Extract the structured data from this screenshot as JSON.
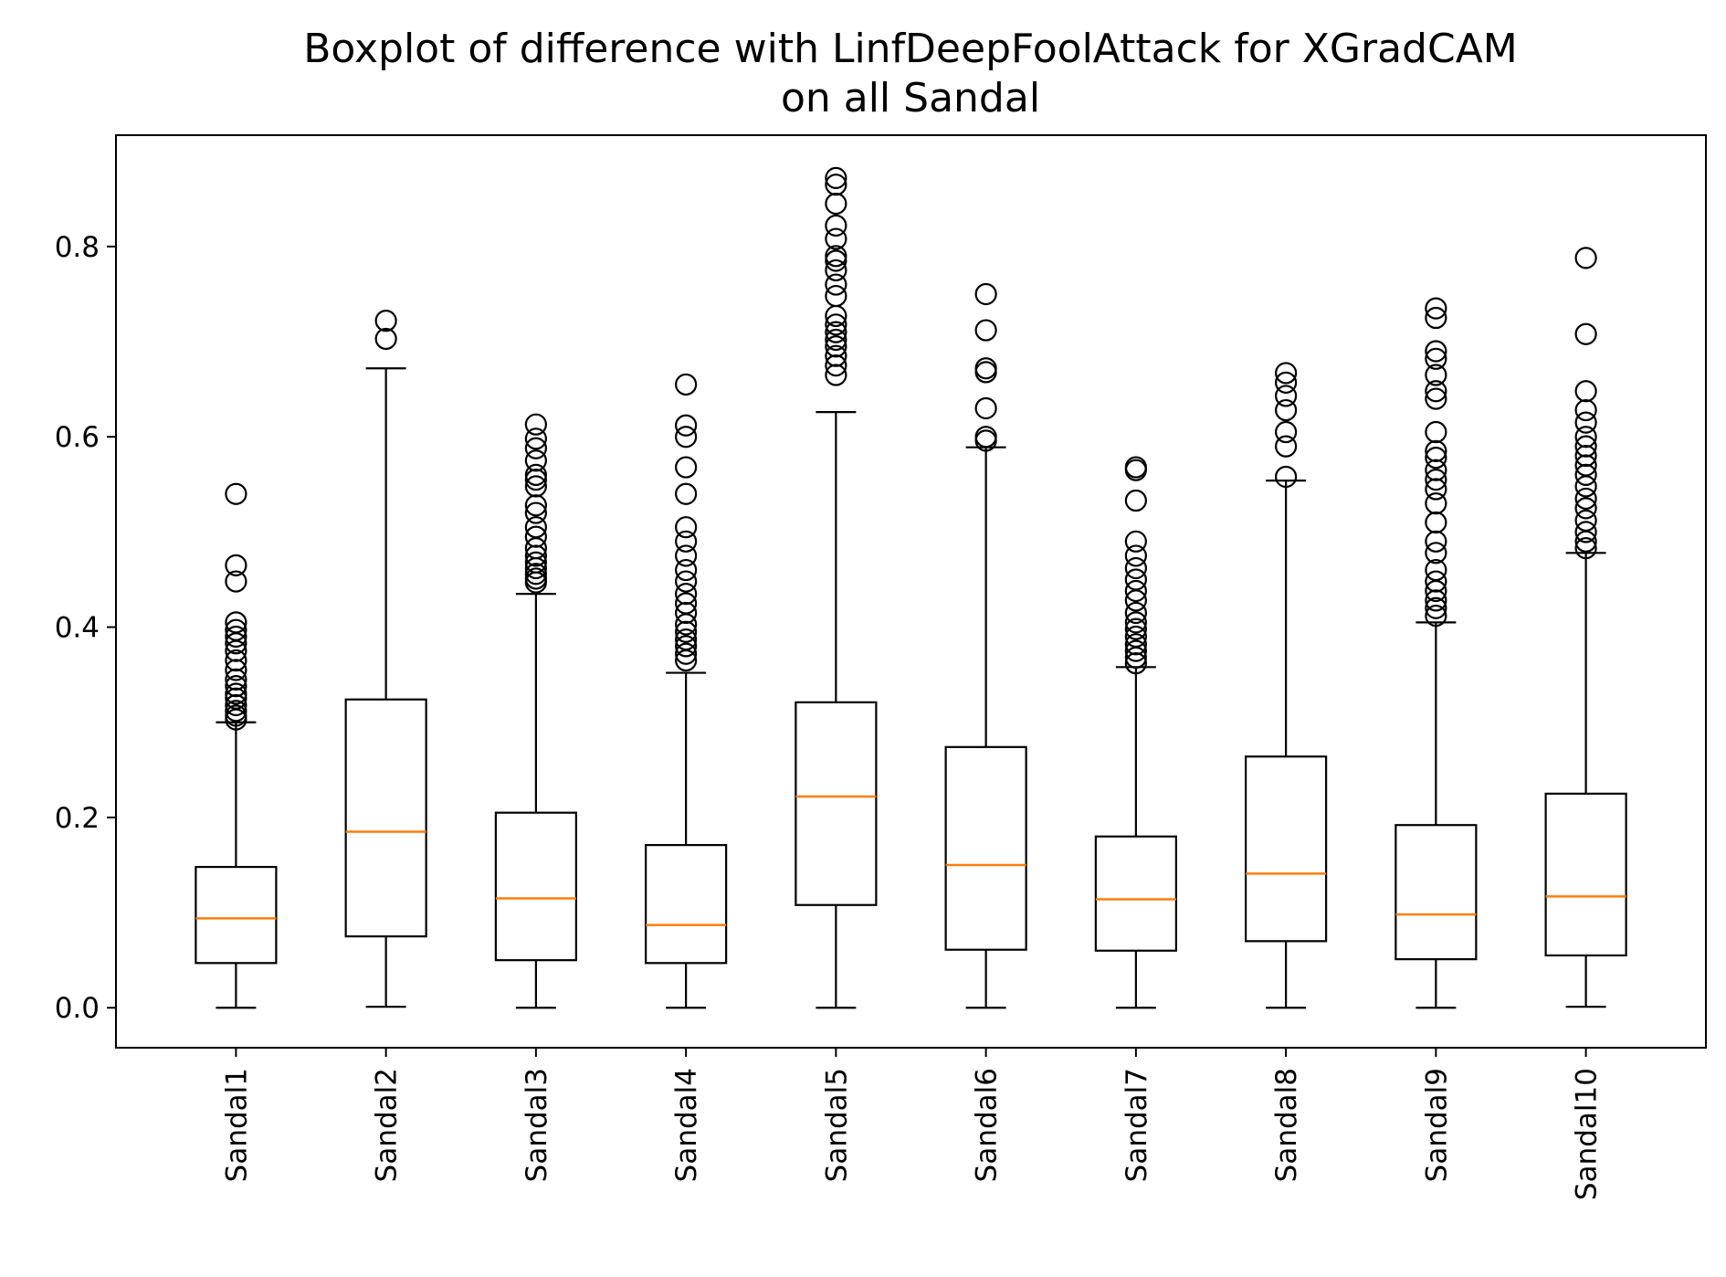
{
  "chart_data": {
    "type": "boxplot",
    "title": "Boxplot of difference with LinfDeepFoolAttack for XGradCAM",
    "subtitle": "on all Sandal",
    "xlabel": "",
    "ylabel": "",
    "ylim": [
      -0.042,
      0.917
    ],
    "yticks": [
      0.0,
      0.2,
      0.4,
      0.6,
      0.8
    ],
    "ytick_labels": [
      "0.0",
      "0.2",
      "0.4",
      "0.6",
      "0.8"
    ],
    "grid": false,
    "colors": {
      "box": "#000000",
      "median": "#ff7f0e",
      "outlier": "#000000"
    },
    "categories": [
      "Sandal1",
      "Sandal2",
      "Sandal3",
      "Sandal4",
      "Sandal5",
      "Sandal6",
      "Sandal7",
      "Sandal8",
      "Sandal9",
      "Sandal10"
    ],
    "boxes": [
      {
        "whisker_low": 0.0,
        "q1": 0.047,
        "median": 0.094,
        "q3": 0.148,
        "whisker_high": 0.3,
        "outliers": [
          0.54,
          0.465,
          0.448,
          0.405,
          0.397,
          0.39,
          0.383,
          0.375,
          0.365,
          0.355,
          0.345,
          0.338,
          0.33,
          0.325,
          0.318,
          0.312,
          0.307,
          0.303
        ]
      },
      {
        "whisker_low": 0.001,
        "q1": 0.075,
        "median": 0.185,
        "q3": 0.324,
        "whisker_high": 0.672,
        "outliers": [
          0.722,
          0.703
        ]
      },
      {
        "whisker_low": 0.0,
        "q1": 0.05,
        "median": 0.115,
        "q3": 0.205,
        "whisker_high": 0.435,
        "outliers": [
          0.613,
          0.598,
          0.588,
          0.575,
          0.56,
          0.555,
          0.548,
          0.528,
          0.52,
          0.505,
          0.495,
          0.483,
          0.475,
          0.468,
          0.462,
          0.456,
          0.451,
          0.447
        ]
      },
      {
        "whisker_low": 0.0,
        "q1": 0.047,
        "median": 0.087,
        "q3": 0.171,
        "whisker_high": 0.352,
        "outliers": [
          0.655,
          0.612,
          0.6,
          0.568,
          0.54,
          0.505,
          0.49,
          0.475,
          0.46,
          0.448,
          0.435,
          0.425,
          0.415,
          0.403,
          0.395,
          0.387,
          0.38,
          0.372,
          0.365
        ]
      },
      {
        "whisker_low": 0.0,
        "q1": 0.108,
        "median": 0.222,
        "q3": 0.321,
        "whisker_high": 0.626,
        "outliers": [
          0.872,
          0.865,
          0.845,
          0.822,
          0.808,
          0.79,
          0.785,
          0.775,
          0.76,
          0.748,
          0.727,
          0.718,
          0.71,
          0.702,
          0.695,
          0.685,
          0.675,
          0.665
        ]
      },
      {
        "whisker_low": 0.0,
        "q1": 0.061,
        "median": 0.15,
        "q3": 0.274,
        "whisker_high": 0.589,
        "outliers": [
          0.75,
          0.712,
          0.672,
          0.668,
          0.63,
          0.6,
          0.596
        ]
      },
      {
        "whisker_low": 0.0,
        "q1": 0.06,
        "median": 0.114,
        "q3": 0.18,
        "whisker_high": 0.358,
        "outliers": [
          0.568,
          0.565,
          0.533,
          0.49,
          0.475,
          0.462,
          0.45,
          0.438,
          0.428,
          0.415,
          0.405,
          0.398,
          0.39,
          0.382,
          0.375,
          0.368,
          0.362
        ]
      },
      {
        "whisker_low": 0.0,
        "q1": 0.07,
        "median": 0.141,
        "q3": 0.264,
        "whisker_high": 0.554,
        "outliers": [
          0.667,
          0.657,
          0.643,
          0.628,
          0.605,
          0.59,
          0.558
        ]
      },
      {
        "whisker_low": 0.0,
        "q1": 0.051,
        "median": 0.098,
        "q3": 0.192,
        "whisker_high": 0.405,
        "outliers": [
          0.735,
          0.725,
          0.69,
          0.682,
          0.665,
          0.648,
          0.64,
          0.605,
          0.585,
          0.578,
          0.565,
          0.555,
          0.545,
          0.53,
          0.51,
          0.49,
          0.478,
          0.46,
          0.448,
          0.438,
          0.428,
          0.42,
          0.412
        ]
      },
      {
        "whisker_low": 0.001,
        "q1": 0.055,
        "median": 0.117,
        "q3": 0.225,
        "whisker_high": 0.478,
        "outliers": [
          0.788,
          0.708,
          0.648,
          0.628,
          0.615,
          0.6,
          0.59,
          0.58,
          0.57,
          0.56,
          0.548,
          0.535,
          0.525,
          0.512,
          0.5,
          0.49,
          0.483
        ]
      }
    ]
  }
}
